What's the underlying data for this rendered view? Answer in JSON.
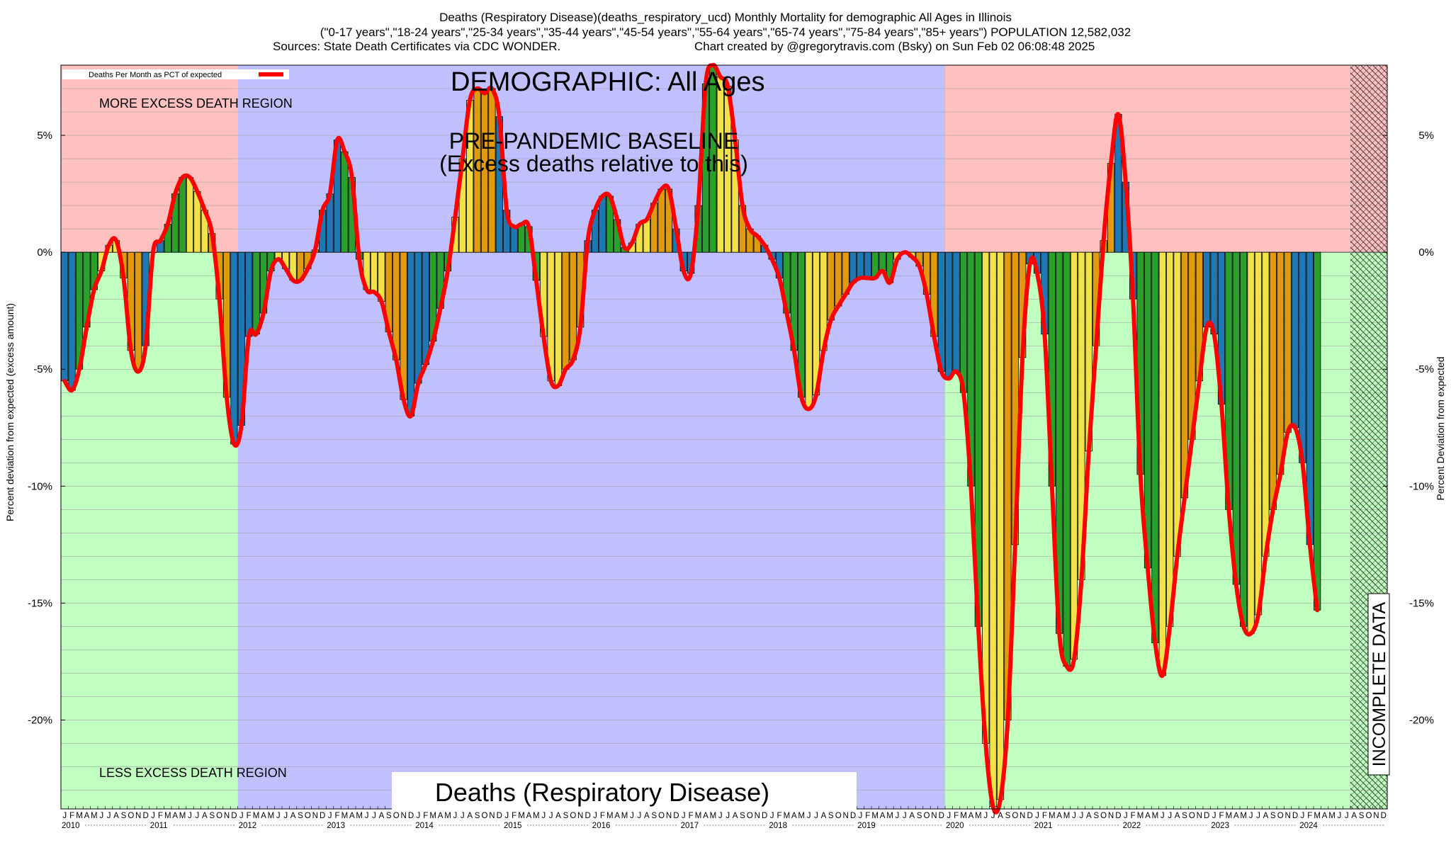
{
  "header": {
    "line1": "Deaths (Respiratory Disease)(deaths_respiratory_ucd) Monthly Mortality for demographic All Ages in Illinois",
    "line2": "(\"0-17 years\",\"18-24 years\",\"25-34 years\",\"35-44 years\",\"45-54 years\",\"55-64 years\",\"65-74 years\",\"75-84 years\",\"85+ years\") POPULATION 12,582,032",
    "sources": "Sources: State Death Certificates via CDC WONDER.",
    "credit": "Chart created by @gregorytravis.com (Bsky) on Sun Feb 02 06:08:48 2025"
  },
  "legend": {
    "label": "Deaths Per Month as PCT of expected"
  },
  "annotations": {
    "more_excess": "MORE EXCESS DEATH REGION",
    "less_excess": "LESS EXCESS DEATH REGION",
    "demographic": "DEMOGRAPHIC: All Ages",
    "baseline_line1": "PRE-PANDEMIC BASELINE",
    "baseline_line2": "(Excess deaths relative to this)",
    "bottom_title": "Deaths (Respiratory Disease)",
    "incomplete": "INCOMPLETE DATA"
  },
  "colors": {
    "more_region": "#ffc0c0",
    "less_region": "#c0ffc0",
    "baseline_region": "#c0c0ff",
    "line": "#ff0000",
    "bar_winter": "#1f77b4",
    "bar_spring": "#2ca02c",
    "bar_summer": "#f2e24a",
    "bar_fall": "#e09a10"
  },
  "chart_data": {
    "type": "bar",
    "title": "Deaths (Respiratory Disease) Monthly Mortality for demographic All Ages in Illinois",
    "xlabel": "",
    "ylabel": "Percent deviation from expected (excess amount)",
    "ylabel_right": "Percent Deviation from expected",
    "ylim": [
      -23.8,
      8.0
    ],
    "yticks": [
      5,
      0,
      -5,
      -10,
      -15,
      -20
    ],
    "ytick_labels": [
      "5%",
      "0%",
      "-5%",
      "-10%",
      "-15%",
      "-20%"
    ],
    "month_letters": [
      "J",
      "F",
      "M",
      "A",
      "M",
      "J",
      "J",
      "A",
      "S",
      "O",
      "N",
      "D"
    ],
    "years": [
      "2010",
      "2011",
      "2012",
      "2013",
      "2014",
      "2015",
      "2016",
      "2017",
      "2018",
      "2019",
      "2020",
      "2021",
      "2022",
      "2023",
      "2024"
    ],
    "start": "2010-01",
    "baseline_period": [
      "2012-01",
      "2019-12"
    ],
    "incomplete_from": "2024-08",
    "series": [
      {
        "name": "Deaths Per Month as PCT of expected",
        "values": [
          -5.5,
          -5.9,
          -5.0,
          -3.2,
          -1.6,
          -0.8,
          0.3,
          0.5,
          -1.1,
          -4.2,
          -5.1,
          -4.0,
          0.0,
          0.5,
          1.2,
          2.5,
          3.2,
          3.2,
          2.6,
          1.8,
          0.8,
          -2.0,
          -6.2,
          -8.2,
          -7.4,
          -3.6,
          -3.5,
          -2.6,
          -0.8,
          -0.3,
          -0.7,
          -1.2,
          -1.2,
          -0.7,
          0.1,
          1.8,
          2.5,
          4.8,
          4.3,
          3.2,
          -0.3,
          -1.6,
          -1.7,
          -2.1,
          -3.4,
          -4.6,
          -6.3,
          -7.0,
          -5.6,
          -4.8,
          -3.8,
          -2.4,
          -0.8,
          1.5,
          4.0,
          6.5,
          7.0,
          6.8,
          7.0,
          5.8,
          1.8,
          1.1,
          1.2,
          1.1,
          -1.2,
          -3.6,
          -5.5,
          -5.7,
          -5.0,
          -4.6,
          -3.2,
          0.5,
          1.8,
          2.4,
          2.4,
          1.4,
          0.2,
          0.4,
          1.2,
          1.4,
          2.1,
          2.7,
          2.7,
          1.0,
          -0.8,
          -0.9,
          2.0,
          7.2,
          8.0,
          7.5,
          7.1,
          4.8,
          2.0,
          1.0,
          0.7,
          0.3,
          -0.3,
          -1.1,
          -2.6,
          -4.2,
          -6.2,
          -6.7,
          -6.1,
          -4.2,
          -2.9,
          -2.3,
          -1.8,
          -1.3,
          -1.1,
          -1.1,
          -1.1,
          -0.8,
          -1.3,
          -0.3,
          0.0,
          -0.2,
          -0.6,
          -1.8,
          -3.6,
          -5.1,
          -5.4,
          -5.1,
          -6.0,
          -10.0,
          -16.0,
          -21.0,
          -23.7,
          -23.4,
          -20.0,
          -12.5,
          -4.5,
          -0.5,
          -0.9,
          -3.5,
          -10.0,
          -16.3,
          -17.7,
          -17.4,
          -14.0,
          -8.5,
          -4.0,
          0.5,
          3.8,
          5.9,
          3.0,
          -2.0,
          -9.5,
          -13.5,
          -16.7,
          -18.1,
          -16.0,
          -13.0,
          -10.5,
          -8.0,
          -5.5,
          -3.2,
          -3.5,
          -6.5,
          -11.0,
          -14.2,
          -16.0,
          -16.3,
          -15.5,
          -13.0,
          -11.0,
          -9.5,
          -7.7,
          -7.5,
          -9.0,
          -12.5,
          -15.3
        ]
      }
    ]
  }
}
